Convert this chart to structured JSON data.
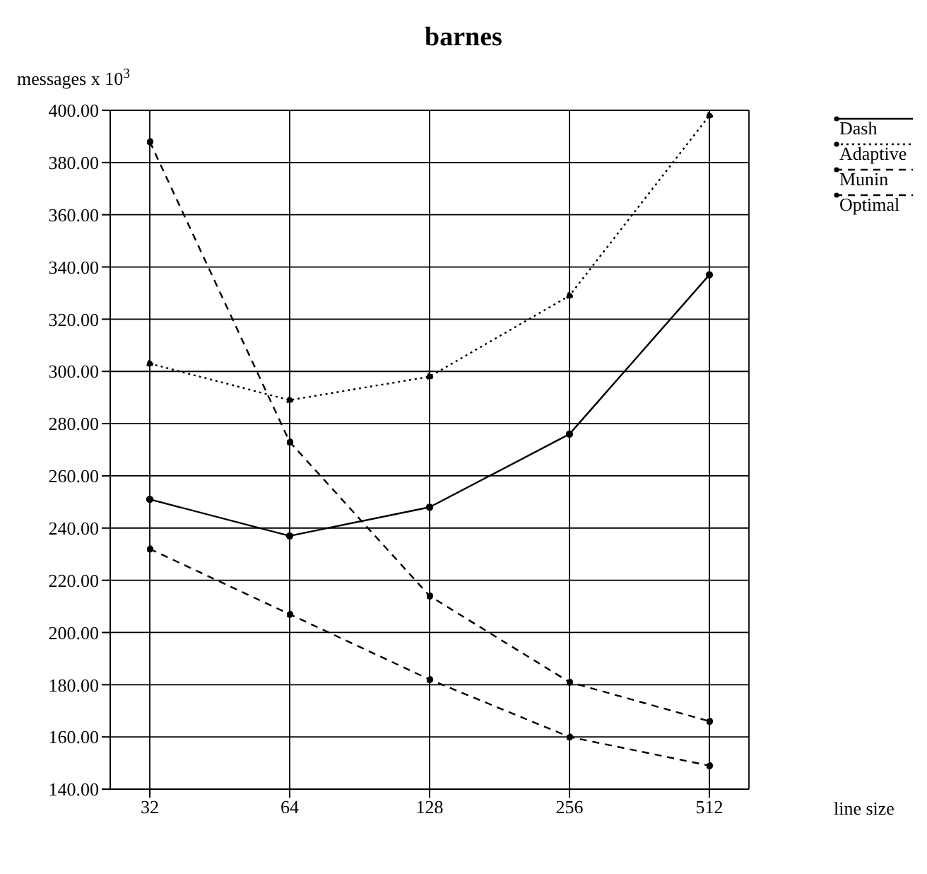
{
  "chart_data": {
    "type": "line",
    "title": "barnes",
    "ylabel": "messages x 10$^{3}$",
    "xlabel": "line size",
    "categories": [
      "32",
      "64",
      "128",
      "256",
      "512"
    ],
    "series": [
      {
        "name": "Dash",
        "color": "#000000",
        "line_style": "solid",
        "values": [
          251,
          237,
          248,
          276,
          337
        ]
      },
      {
        "name": "Adaptive",
        "color": "#000000",
        "line_style": "dotted",
        "values": [
          303,
          289,
          298,
          329,
          398
        ]
      },
      {
        "name": "Munin",
        "color": "#000000",
        "line_style": "dashed",
        "values": [
          388,
          273,
          214,
          181,
          166
        ]
      },
      {
        "name": "Optimal",
        "color": "#000000",
        "line_style": "dashed",
        "values": [
          232,
          207,
          182,
          160,
          149
        ]
      }
    ],
    "ylim": [
      140,
      400
    ],
    "yticks": [
      {
        "value": 140,
        "label": "140.00"
      },
      {
        "value": 160,
        "label": "160.00"
      },
      {
        "value": 180,
        "label": "180.00"
      },
      {
        "value": 200,
        "label": "200.00"
      },
      {
        "value": 220,
        "label": "220.00"
      },
      {
        "value": 240,
        "label": "240.00"
      },
      {
        "value": 260,
        "label": "260.00"
      },
      {
        "value": 280,
        "label": "280.00"
      },
      {
        "value": 300,
        "label": "300.00"
      },
      {
        "value": 320,
        "label": "320.00"
      },
      {
        "value": 340,
        "label": "340.00"
      },
      {
        "value": 360,
        "label": "360.00"
      },
      {
        "value": 380,
        "label": "380.00"
      },
      {
        "value": 400,
        "label": "400.00"
      }
    ],
    "grid": true,
    "legend": "top right",
    "marker": "circle"
  }
}
